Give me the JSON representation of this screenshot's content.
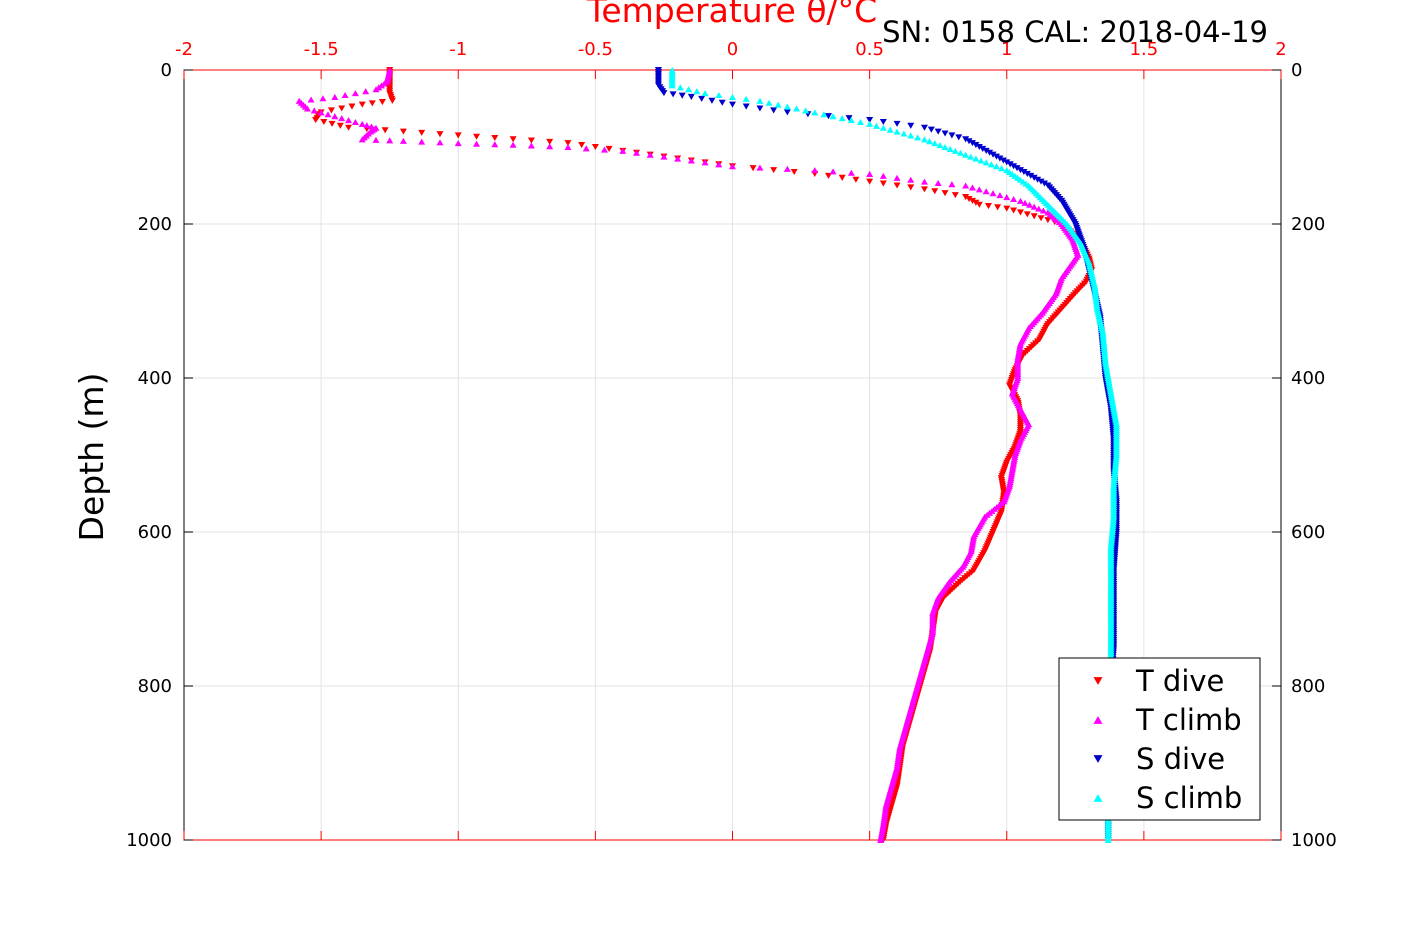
{
  "chart_data": {
    "type": "scatter",
    "title": "SN: 0158  CAL: 2018-04-19",
    "xlabel": "Temperature θ/°C",
    "ylabel": "Depth (m)",
    "xlim": [
      -2,
      2
    ],
    "ylim": [
      0,
      1000
    ],
    "y_reversed": true,
    "grid": true,
    "legend_position": "bottom-right",
    "x_ticks": [
      "-2",
      "-1.5",
      "-1",
      "-0.5",
      "0",
      "0.5",
      "1",
      "1.5",
      "2"
    ],
    "y_ticks": [
      "0",
      "200",
      "400",
      "600",
      "800",
      "1000"
    ],
    "series": [
      {
        "name": "T dive",
        "color": "#ff0000",
        "marker": "triangle-down",
        "points": [
          [
            -1.25,
            0
          ],
          [
            -1.25,
            10
          ],
          [
            -1.25,
            20
          ],
          [
            -1.25,
            30
          ],
          [
            -1.24,
            40
          ],
          [
            -1.35,
            45
          ],
          [
            -1.5,
            55
          ],
          [
            -1.52,
            65
          ],
          [
            -1.4,
            75
          ],
          [
            -1.2,
            80
          ],
          [
            -1.0,
            85
          ],
          [
            -0.8,
            90
          ],
          [
            -0.6,
            95
          ],
          [
            -0.4,
            105
          ],
          [
            -0.2,
            115
          ],
          [
            0.0,
            125
          ],
          [
            0.3,
            135
          ],
          [
            0.5,
            145
          ],
          [
            0.7,
            155
          ],
          [
            0.85,
            165
          ],
          [
            0.9,
            175
          ],
          [
            1.0,
            180
          ],
          [
            1.1,
            190
          ],
          [
            1.2,
            200
          ],
          [
            1.25,
            215
          ],
          [
            1.28,
            230
          ],
          [
            1.3,
            245
          ],
          [
            1.31,
            260
          ],
          [
            1.29,
            275
          ],
          [
            1.25,
            290
          ],
          [
            1.2,
            310
          ],
          [
            1.15,
            330
          ],
          [
            1.12,
            350
          ],
          [
            1.06,
            370
          ],
          [
            1.03,
            390
          ],
          [
            1.01,
            410
          ],
          [
            1.04,
            430
          ],
          [
            1.05,
            450
          ],
          [
            1.05,
            470
          ],
          [
            1.03,
            490
          ],
          [
            1.0,
            510
          ],
          [
            0.98,
            530
          ],
          [
            0.99,
            550
          ],
          [
            0.98,
            575
          ],
          [
            0.95,
            600
          ],
          [
            0.92,
            625
          ],
          [
            0.88,
            650
          ],
          [
            0.83,
            665
          ],
          [
            0.77,
            685
          ],
          [
            0.74,
            705
          ],
          [
            0.73,
            730
          ],
          [
            0.72,
            755
          ],
          [
            0.7,
            780
          ],
          [
            0.68,
            805
          ],
          [
            0.66,
            830
          ],
          [
            0.64,
            855
          ],
          [
            0.62,
            880
          ],
          [
            0.61,
            905
          ],
          [
            0.6,
            930
          ],
          [
            0.58,
            955
          ],
          [
            0.56,
            980
          ],
          [
            0.55,
            1000
          ]
        ]
      },
      {
        "name": "T climb",
        "color": "#ff00ff",
        "marker": "triangle-up",
        "points": [
          [
            -1.25,
            0
          ],
          [
            -1.26,
            15
          ],
          [
            -1.3,
            25
          ],
          [
            -1.45,
            35
          ],
          [
            -1.58,
            40
          ],
          [
            -1.55,
            50
          ],
          [
            -1.45,
            60
          ],
          [
            -1.35,
            70
          ],
          [
            -1.3,
            75
          ],
          [
            -1.32,
            80
          ],
          [
            -1.35,
            90
          ],
          [
            -1.2,
            92
          ],
          [
            -1.0,
            95
          ],
          [
            -0.8,
            97
          ],
          [
            -0.6,
            100
          ],
          [
            -0.4,
            105
          ],
          [
            -0.2,
            115
          ],
          [
            0.0,
            125
          ],
          [
            0.3,
            130
          ],
          [
            0.5,
            135
          ],
          [
            0.7,
            145
          ],
          [
            0.85,
            150
          ],
          [
            0.95,
            160
          ],
          [
            1.05,
            170
          ],
          [
            1.15,
            185
          ],
          [
            1.2,
            200
          ],
          [
            1.24,
            220
          ],
          [
            1.26,
            240
          ],
          [
            1.23,
            255
          ],
          [
            1.2,
            270
          ],
          [
            1.18,
            290
          ],
          [
            1.13,
            315
          ],
          [
            1.08,
            335
          ],
          [
            1.05,
            355
          ],
          [
            1.04,
            375
          ],
          [
            1.04,
            400
          ],
          [
            1.02,
            420
          ],
          [
            1.05,
            440
          ],
          [
            1.08,
            460
          ],
          [
            1.05,
            480
          ],
          [
            1.03,
            500
          ],
          [
            1.02,
            520
          ],
          [
            1.01,
            540
          ],
          [
            0.99,
            560
          ],
          [
            0.92,
            580
          ],
          [
            0.88,
            605
          ],
          [
            0.87,
            625
          ],
          [
            0.84,
            645
          ],
          [
            0.79,
            665
          ],
          [
            0.75,
            685
          ],
          [
            0.73,
            705
          ],
          [
            0.73,
            730
          ],
          [
            0.71,
            755
          ],
          [
            0.69,
            780
          ],
          [
            0.67,
            805
          ],
          [
            0.65,
            830
          ],
          [
            0.63,
            855
          ],
          [
            0.61,
            880
          ],
          [
            0.6,
            905
          ],
          [
            0.58,
            930
          ],
          [
            0.56,
            955
          ],
          [
            0.55,
            980
          ],
          [
            0.54,
            1000
          ]
        ]
      },
      {
        "name": "S dive",
        "color": "#0000cc",
        "marker": "triangle-down",
        "points": [
          [
            -0.27,
            0
          ],
          [
            -0.27,
            10
          ],
          [
            -0.27,
            20
          ],
          [
            -0.25,
            30
          ],
          [
            -0.15,
            35
          ],
          [
            0.0,
            45
          ],
          [
            0.2,
            55
          ],
          [
            0.5,
            65
          ],
          [
            0.7,
            75
          ],
          [
            0.85,
            90
          ],
          [
            0.95,
            110
          ],
          [
            1.05,
            130
          ],
          [
            1.15,
            150
          ],
          [
            1.2,
            170
          ],
          [
            1.25,
            200
          ],
          [
            1.28,
            230
          ],
          [
            1.3,
            260
          ],
          [
            1.32,
            290
          ],
          [
            1.34,
            320
          ],
          [
            1.35,
            360
          ],
          [
            1.36,
            400
          ],
          [
            1.38,
            440
          ],
          [
            1.39,
            480
          ],
          [
            1.39,
            520
          ],
          [
            1.4,
            560
          ],
          [
            1.4,
            600
          ],
          [
            1.39,
            650
          ],
          [
            1.39,
            700
          ],
          [
            1.39,
            750
          ],
          [
            1.38,
            800
          ],
          [
            1.38,
            850
          ],
          [
            1.38,
            900
          ],
          [
            1.37,
            950
          ],
          [
            1.37,
            1000
          ]
        ]
      },
      {
        "name": "S climb",
        "color": "#00ffff",
        "marker": "triangle-up",
        "points": [
          [
            -0.22,
            0
          ],
          [
            -0.22,
            10
          ],
          [
            -0.22,
            20
          ],
          [
            -0.1,
            30
          ],
          [
            0.1,
            40
          ],
          [
            0.3,
            55
          ],
          [
            0.5,
            70
          ],
          [
            0.7,
            90
          ],
          [
            0.85,
            110
          ],
          [
            1.0,
            130
          ],
          [
            1.08,
            150
          ],
          [
            1.15,
            175
          ],
          [
            1.22,
            200
          ],
          [
            1.27,
            225
          ],
          [
            1.3,
            250
          ],
          [
            1.32,
            280
          ],
          [
            1.33,
            310
          ],
          [
            1.35,
            340
          ],
          [
            1.36,
            380
          ],
          [
            1.38,
            420
          ],
          [
            1.4,
            460
          ],
          [
            1.4,
            500
          ],
          [
            1.39,
            540
          ],
          [
            1.39,
            580
          ],
          [
            1.38,
            620
          ],
          [
            1.38,
            660
          ],
          [
            1.38,
            700
          ],
          [
            1.38,
            750
          ],
          [
            1.38,
            800
          ],
          [
            1.38,
            850
          ],
          [
            1.37,
            900
          ],
          [
            1.37,
            950
          ],
          [
            1.37,
            1000
          ]
        ]
      }
    ]
  }
}
